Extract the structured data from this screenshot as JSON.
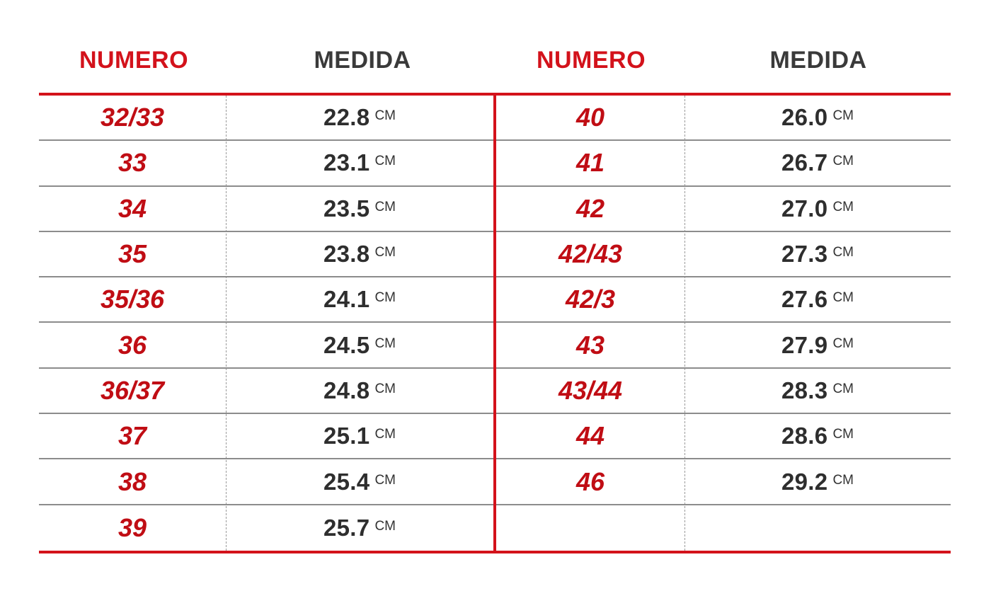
{
  "headers": {
    "left_number": "NUMERO",
    "left_measure": "MEDIDA",
    "right_number": "NUMERO",
    "right_measure": "MEDIDA"
  },
  "unit": "CM",
  "left_rows": [
    {
      "numero": "32/33",
      "medida": "22.8"
    },
    {
      "numero": "33",
      "medida": "23.1"
    },
    {
      "numero": "34",
      "medida": "23.5"
    },
    {
      "numero": "35",
      "medida": "23.8"
    },
    {
      "numero": "35/36",
      "medida": "24.1"
    },
    {
      "numero": "36",
      "medida": "24.5"
    },
    {
      "numero": "36/37",
      "medida": "24.8"
    },
    {
      "numero": "37",
      "medida": "25.1"
    },
    {
      "numero": "38",
      "medida": "25.4"
    },
    {
      "numero": "39",
      "medida": "25.7"
    }
  ],
  "right_rows": [
    {
      "numero": "40",
      "medida": "26.0"
    },
    {
      "numero": "41",
      "medida": "26.7"
    },
    {
      "numero": "42",
      "medida": "27.0"
    },
    {
      "numero": "42/43",
      "medida": "27.3"
    },
    {
      "numero": "42/3",
      "medida": "27.6"
    },
    {
      "numero": "43",
      "medida": "27.9"
    },
    {
      "numero": "43/44",
      "medida": "28.3"
    },
    {
      "numero": "44",
      "medida": "28.6"
    },
    {
      "numero": "46",
      "medida": "29.2"
    }
  ],
  "colors": {
    "accent_red": "#d3121b",
    "number_red": "#c00d14",
    "text_dark": "#2e2e2e",
    "row_line": "#8c8c8c"
  }
}
